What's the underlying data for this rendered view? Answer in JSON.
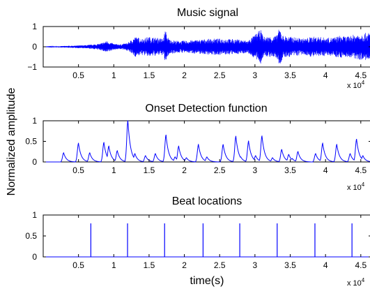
{
  "figure": {
    "ylabel": "Normalized amplitude",
    "xlabel": "time(s)",
    "x_multiplier_base": "x 10",
    "x_multiplier_exp": "4"
  },
  "colors": {
    "line": "#0000ff",
    "axes": "#000000",
    "background": "#ffffff"
  },
  "chart_data": [
    {
      "type": "line",
      "title": "Music signal",
      "xlim": [
        0,
        46500
      ],
      "ylim": [
        -1,
        1
      ],
      "yticks": [
        -1,
        0,
        1
      ],
      "ytick_labels": [
        "−1",
        "0",
        "1"
      ],
      "xticks": [
        5000,
        10000,
        15000,
        20000,
        25000,
        30000,
        35000,
        40000,
        45000
      ],
      "xtick_labels": [
        "0.5",
        "1",
        "1.5",
        "2",
        "2.5",
        "3",
        "3.5",
        "4",
        "4.5"
      ],
      "envelope": {
        "x": [
          0,
          1500,
          3000,
          6000,
          8000,
          9000,
          10000,
          11000,
          12000,
          12500,
          13000,
          14000,
          15000,
          16000,
          17000,
          17300,
          17600,
          18000,
          19000,
          20000,
          22000,
          24000,
          26000,
          28000,
          29000,
          30000,
          30800,
          31200,
          32000,
          33000,
          33500,
          34000,
          35000,
          36000,
          37000,
          38000,
          39000,
          40000,
          41000,
          42000,
          43000,
          44000,
          45000,
          46000,
          46500
        ],
        "amp": [
          0.0,
          0.02,
          0.04,
          0.08,
          0.15,
          0.3,
          0.15,
          0.12,
          0.2,
          0.35,
          0.5,
          0.4,
          0.5,
          0.45,
          0.4,
          0.85,
          0.5,
          0.35,
          0.3,
          0.3,
          0.35,
          0.4,
          0.4,
          0.35,
          0.3,
          0.6,
          0.85,
          0.5,
          0.5,
          0.55,
          0.95,
          0.55,
          0.5,
          0.45,
          0.4,
          0.5,
          0.5,
          0.45,
          0.45,
          0.55,
          0.5,
          0.6,
          0.65,
          0.7,
          0.7
        ]
      }
    },
    {
      "type": "line",
      "title": "Onset Detection function",
      "xlim": [
        0,
        46500
      ],
      "ylim": [
        0,
        1
      ],
      "yticks": [
        0,
        0.5,
        1
      ],
      "ytick_labels": [
        "0",
        "0.5",
        "1"
      ],
      "xticks": [
        5000,
        10000,
        15000,
        20000,
        25000,
        30000,
        35000,
        40000,
        45000
      ],
      "xtick_labels": [
        "0.5",
        "1",
        "1.5",
        "2",
        "2.5",
        "3",
        "3.5",
        "4",
        "4.5"
      ],
      "peaks": [
        {
          "x": 2900,
          "y": 0.22
        },
        {
          "x": 5000,
          "y": 0.45
        },
        {
          "x": 6600,
          "y": 0.22
        },
        {
          "x": 8600,
          "y": 0.47
        },
        {
          "x": 9300,
          "y": 0.38
        },
        {
          "x": 10500,
          "y": 0.27
        },
        {
          "x": 12000,
          "y": 1.0
        },
        {
          "x": 13000,
          "y": 0.2
        },
        {
          "x": 14500,
          "y": 0.15
        },
        {
          "x": 15900,
          "y": 0.2
        },
        {
          "x": 17400,
          "y": 0.65
        },
        {
          "x": 18700,
          "y": 0.12
        },
        {
          "x": 19200,
          "y": 0.38
        },
        {
          "x": 20300,
          "y": 0.1
        },
        {
          "x": 22000,
          "y": 0.42
        },
        {
          "x": 23200,
          "y": 0.12
        },
        {
          "x": 25500,
          "y": 0.42
        },
        {
          "x": 27300,
          "y": 0.62
        },
        {
          "x": 28000,
          "y": 0.12
        },
        {
          "x": 29100,
          "y": 0.5
        },
        {
          "x": 30100,
          "y": 0.15
        },
        {
          "x": 31000,
          "y": 0.63
        },
        {
          "x": 32500,
          "y": 0.1
        },
        {
          "x": 33800,
          "y": 0.3
        },
        {
          "x": 34800,
          "y": 0.18
        },
        {
          "x": 35300,
          "y": 0.08
        },
        {
          "x": 36100,
          "y": 0.25
        },
        {
          "x": 38600,
          "y": 0.2
        },
        {
          "x": 39600,
          "y": 0.45
        },
        {
          "x": 41600,
          "y": 0.42
        },
        {
          "x": 43500,
          "y": 0.2
        },
        {
          "x": 44400,
          "y": 0.55
        },
        {
          "x": 45300,
          "y": 0.15
        }
      ]
    },
    {
      "type": "line",
      "title": "Beat locations",
      "xlim": [
        0,
        46500
      ],
      "ylim": [
        0,
        1
      ],
      "yticks": [
        0,
        0.5,
        1
      ],
      "ytick_labels": [
        "0",
        "0.5",
        "1"
      ],
      "xticks": [
        5000,
        10000,
        15000,
        20000,
        25000,
        30000,
        35000,
        40000,
        45000
      ],
      "xtick_labels": [
        "0.5",
        "1",
        "1.5",
        "2",
        "2.5",
        "3",
        "3.5",
        "4",
        "4.5"
      ],
      "beats": [
        {
          "x": 6750,
          "y": 0.8
        },
        {
          "x": 11950,
          "y": 0.8
        },
        {
          "x": 17200,
          "y": 0.8
        },
        {
          "x": 22650,
          "y": 0.8
        },
        {
          "x": 27850,
          "y": 0.8
        },
        {
          "x": 33150,
          "y": 0.8
        },
        {
          "x": 38500,
          "y": 0.8
        },
        {
          "x": 43750,
          "y": 0.8
        }
      ]
    }
  ]
}
